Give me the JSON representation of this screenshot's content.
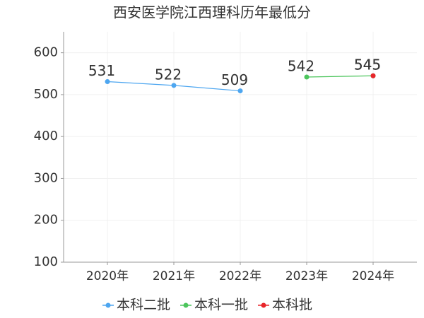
{
  "chart_data": {
    "type": "line",
    "title": "西安医学院江西理科历年最低分",
    "categories": [
      "2020年",
      "2021年",
      "2022年",
      "2023年",
      "2024年"
    ],
    "series": [
      {
        "name": "本科二批",
        "color": "#4da6f0",
        "values": [
          531,
          522,
          509,
          null,
          null
        ]
      },
      {
        "name": "本科一批",
        "color": "#4cc55c",
        "values": [
          null,
          null,
          null,
          542,
          545
        ]
      },
      {
        "name": "本科批",
        "color": "#e8252a",
        "values": [
          null,
          null,
          null,
          null,
          545
        ]
      }
    ],
    "ylim": [
      100,
      650
    ],
    "yticks": [
      100,
      200,
      300,
      400,
      500,
      600
    ],
    "grid": true,
    "legend": "bottom"
  }
}
